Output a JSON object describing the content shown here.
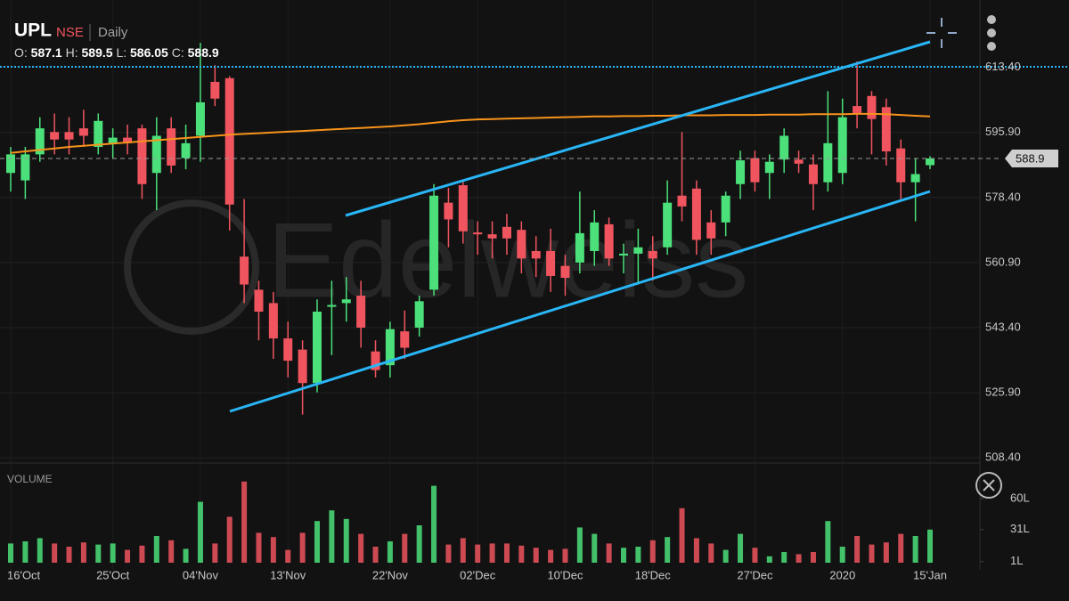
{
  "chart_data": {
    "type": "candlestick",
    "title": "UPL",
    "exchange": "NSE",
    "interval": "Daily",
    "ohlc_labels": [
      "O:",
      "H:",
      "L:",
      "C:"
    ],
    "watermark": "Edelweiss",
    "up_color": "#4be07a",
    "down_color": "#f0555f",
    "categories": [
      "16'Oct",
      null,
      null,
      null,
      null,
      null,
      null,
      "25'Oct",
      null,
      null,
      null,
      null,
      null,
      "04'Nov",
      null,
      null,
      null,
      null,
      null,
      "13'Nov",
      null,
      null,
      null,
      null,
      null,
      null,
      "22'Nov",
      null,
      null,
      null,
      null,
      null,
      "02'Dec",
      null,
      null,
      null,
      null,
      null,
      "10'Dec",
      null,
      null,
      null,
      null,
      null,
      "18'Dec",
      null,
      null,
      null,
      null,
      null,
      null,
      "27'Dec",
      null,
      null,
      null,
      null,
      null,
      "2020",
      null,
      null,
      null,
      null,
      null,
      "15'Jan"
    ],
    "open": [
      585,
      583,
      590,
      596,
      596,
      597,
      592,
      593,
      594.5,
      597,
      585,
      597,
      589,
      595,
      609.5,
      610.5,
      562.5,
      553.6,
      550,
      540.5,
      537.5,
      528.5,
      549,
      550,
      552,
      537,
      533.3,
      542.4,
      543.4,
      553.6,
      577,
      581.7,
      569,
      568.5,
      570.5,
      569.7,
      564,
      564,
      560,
      560.9,
      564,
      571.2,
      562.8,
      563.3,
      564,
      565,
      578.9,
      580.8,
      571.7,
      571.7,
      582,
      589,
      585,
      588.6,
      588.6,
      587.3,
      582.5,
      585,
      603,
      605.7,
      602.7,
      591.6,
      582.5,
      587.1
    ],
    "high": [
      592,
      592,
      600,
      601,
      600,
      602,
      601,
      597,
      598,
      598,
      600,
      600,
      598,
      620,
      614,
      611,
      578,
      556,
      553,
      545,
      540,
      551,
      556,
      557,
      556,
      540,
      545,
      548,
      552,
      582,
      581,
      583,
      572,
      572,
      574,
      572,
      568,
      570,
      563,
      580,
      575,
      573,
      566,
      570,
      568,
      583,
      596,
      583,
      575,
      580,
      591,
      591,
      590,
      597,
      591,
      590,
      607,
      605,
      615,
      607,
      605,
      594,
      589,
      589.5
    ],
    "low": [
      580,
      578,
      588,
      590,
      590,
      592,
      590,
      589,
      590,
      578,
      575,
      585,
      586,
      588,
      603,
      569.5,
      550,
      540,
      535,
      530,
      520,
      526,
      536,
      545,
      538,
      530,
      530,
      535,
      541,
      552,
      565,
      566,
      563,
      562,
      563,
      558,
      557,
      553,
      552,
      558,
      560,
      560,
      558,
      555,
      556,
      563,
      572,
      563,
      563,
      568,
      578,
      580,
      578,
      585,
      585,
      575,
      580,
      582,
      597,
      590,
      587,
      578,
      572,
      586.05
    ],
    "close": [
      590,
      590,
      597,
      594,
      594,
      595,
      599,
      594.5,
      593,
      582,
      595,
      587,
      593,
      604,
      605,
      576.5,
      555,
      547.7,
      540.5,
      534.5,
      528.5,
      547.7,
      549.5,
      551,
      543.4,
      532,
      543,
      538,
      550.5,
      578.9,
      572.5,
      569.3,
      568.5,
      567.4,
      567.4,
      562,
      562,
      557.3,
      556.8,
      568.8,
      571.7,
      562,
      563.3,
      565,
      562,
      577,
      576,
      567,
      567.4,
      578.9,
      588.4,
      582.5,
      588,
      595,
      587.5,
      582,
      593,
      600,
      600.8,
      599.5,
      590.8,
      582.5,
      584.7,
      588.9
    ],
    "moving_average": {
      "color": "#f7931a",
      "values": [
        590.4,
        590.8,
        591.2,
        591.6,
        592.0,
        592.3,
        592.6,
        592.9,
        593.2,
        593.5,
        593.8,
        594.1,
        594.4,
        594.7,
        595.0,
        595.3,
        595.5,
        595.7,
        595.9,
        596.1,
        596.3,
        596.5,
        596.7,
        596.9,
        597.1,
        597.3,
        597.5,
        597.8,
        598.1,
        598.5,
        598.9,
        599.2,
        599.4,
        599.5,
        599.6,
        599.7,
        599.8,
        599.9,
        600.0,
        600.1,
        600.2,
        600.2,
        600.3,
        600.3,
        600.4,
        600.4,
        600.5,
        600.5,
        600.5,
        600.6,
        600.6,
        600.6,
        600.7,
        600.7,
        600.7,
        600.8,
        600.8,
        600.8,
        600.9,
        600.9,
        600.8,
        600.6,
        600.4,
        600.2
      ]
    },
    "ylim": [
      507,
      629.6
    ],
    "yticks": [
      {
        "value": 508.4,
        "label": "508.40"
      },
      {
        "value": 525.9,
        "label": "525.90"
      },
      {
        "value": 543.4,
        "label": "543.40"
      },
      {
        "value": 560.9,
        "label": "560.90"
      },
      {
        "value": 578.4,
        "label": "578.40"
      },
      {
        "value": 595.9,
        "label": "595.90"
      },
      {
        "value": 613.4,
        "label": "613.40"
      }
    ],
    "volume": {
      "label": "VOLUME",
      "values": [
        18,
        20,
        23,
        18,
        15,
        19,
        17,
        18,
        12,
        16,
        25,
        21,
        13,
        57,
        18,
        43,
        76,
        28,
        24,
        12,
        28,
        39,
        49,
        41,
        27,
        15,
        20,
        27,
        35,
        72,
        17,
        23,
        17,
        18,
        18,
        16,
        14,
        12,
        13,
        33,
        27,
        18,
        14,
        15,
        21,
        24,
        51,
        23,
        18,
        12,
        27,
        14,
        6,
        10,
        8,
        10,
        39,
        15,
        25,
        17,
        19,
        27,
        25,
        31
      ],
      "ylim": [
        0,
        90
      ],
      "yticks": [
        {
          "value": 1,
          "label": "1L"
        },
        {
          "value": 31,
          "label": "31L"
        },
        {
          "value": 60,
          "label": "60L"
        }
      ]
    }
  }
}
